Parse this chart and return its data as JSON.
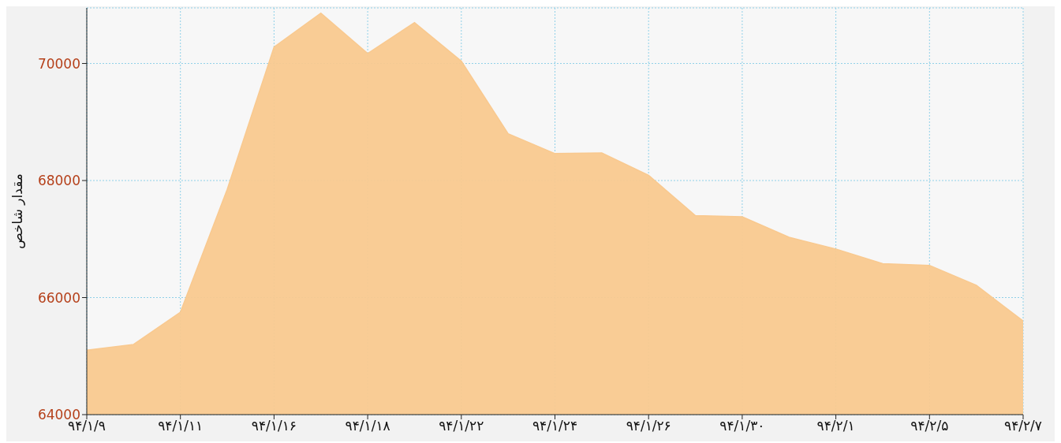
{
  "chart_data": {
    "type": "area",
    "ylabel": "مقدار شاخص",
    "categories": [
      "۹۴/۱/۹",
      null,
      "۹۴/۱/۱۱",
      null,
      "۹۴/۱/۱۶",
      null,
      "۹۴/۱/۱۸",
      null,
      "۹۴/۱/۲۲",
      null,
      "۹۴/۱/۲۴",
      null,
      "۹۴/۱/۲۶",
      null,
      "۹۴/۱/۳۰",
      null,
      "۹۴/۲/۱",
      null,
      "۹۴/۲/۵",
      null,
      "۹۴/۲/۷"
    ],
    "series": [
      {
        "color": "#f9c98f",
        "values": [
          65100,
          65200,
          65750,
          67850,
          70280,
          70860,
          70170,
          70700,
          70040,
          68800,
          68460,
          68470,
          68090,
          67400,
          67380,
          67030,
          66830,
          66580,
          66550,
          66210,
          65600
        ]
      }
    ],
    "ylim": [
      64000,
      70950
    ],
    "yticks": [
      64000,
      66000,
      68000,
      70000
    ],
    "grid": true,
    "legend": false
  }
}
